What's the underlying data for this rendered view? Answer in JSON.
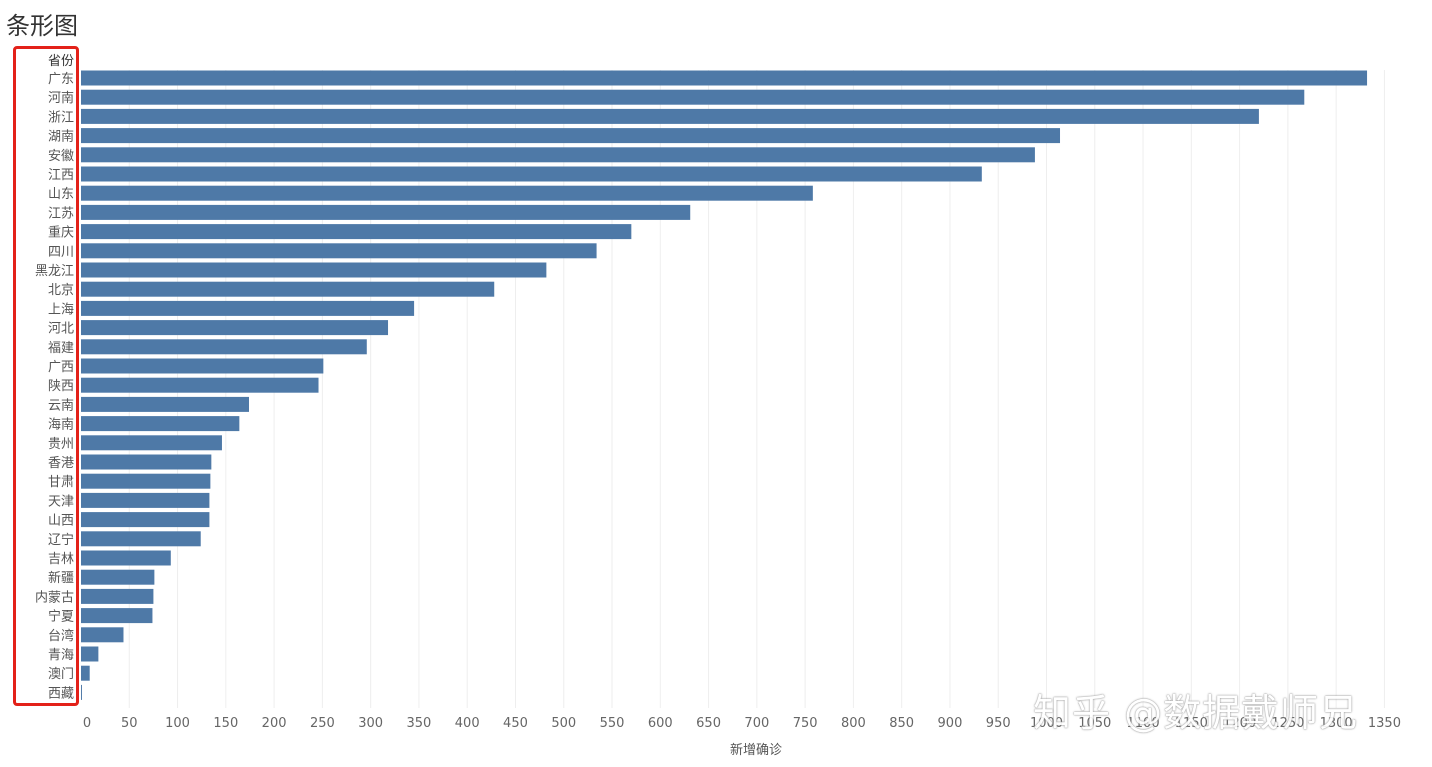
{
  "title": "条形图",
  "watermark": "知乎 @数据戴师兄",
  "highlight_color": "#e32119",
  "chart_data": {
    "type": "bar",
    "orientation": "horizontal",
    "dimension_header": "省份",
    "xlabel": "新增确诊",
    "xlim": [
      0,
      1375
    ],
    "x_ticks": [
      0,
      50,
      100,
      150,
      200,
      250,
      300,
      350,
      400,
      450,
      500,
      550,
      600,
      650,
      700,
      750,
      800,
      850,
      900,
      950,
      1000,
      1050,
      1100,
      1150,
      1200,
      1250,
      1300,
      1350
    ],
    "grid": true,
    "bar_color": "#4e79a7",
    "categories": [
      "广东",
      "河南",
      "浙江",
      "湖南",
      "安徽",
      "江西",
      "山东",
      "江苏",
      "重庆",
      "四川",
      "黑龙江",
      "北京",
      "上海",
      "河北",
      "福建",
      "广西",
      "陕西",
      "云南",
      "海南",
      "贵州",
      "香港",
      "甘肃",
      "天津",
      "山西",
      "辽宁",
      "吉林",
      "新疆",
      "内蒙古",
      "宁夏",
      "台湾",
      "青海",
      "澳门",
      "西藏"
    ],
    "values": [
      1332,
      1267,
      1220,
      1014,
      988,
      933,
      758,
      631,
      570,
      534,
      482,
      428,
      345,
      318,
      296,
      251,
      246,
      174,
      164,
      146,
      135,
      134,
      133,
      133,
      124,
      93,
      76,
      75,
      74,
      44,
      18,
      9,
      1
    ]
  }
}
